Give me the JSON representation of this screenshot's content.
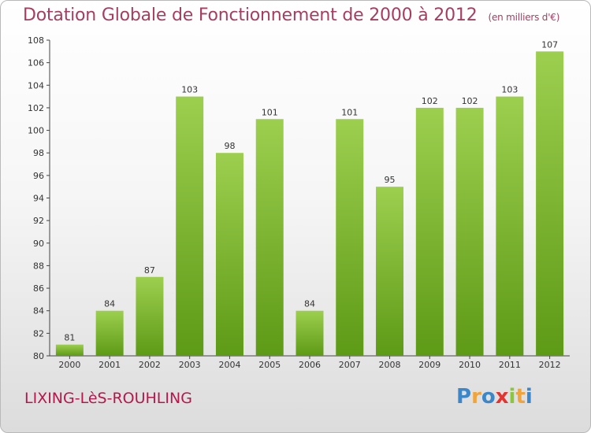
{
  "chart_data": {
    "type": "bar",
    "title": "Dotation Globale de Fonctionnement de 2000 à 2012",
    "subtitle": "(en milliers d'€)",
    "categories": [
      "2000",
      "2001",
      "2002",
      "2003",
      "2004",
      "2005",
      "2006",
      "2007",
      "2008",
      "2009",
      "2010",
      "2011",
      "2012"
    ],
    "values": [
      81,
      84,
      87,
      103,
      98,
      101,
      84,
      101,
      95,
      102,
      102,
      103,
      107
    ],
    "ylim": [
      80,
      108
    ],
    "yticks": [
      80,
      82,
      84,
      86,
      88,
      90,
      92,
      94,
      96,
      98,
      100,
      102,
      104,
      106,
      108
    ],
    "grid": false,
    "legend": "none",
    "bar_color_light": "#9dcf4f",
    "bar_color_dark": "#5d9a16"
  },
  "commune": "LIXING-LèS-ROUHLING",
  "logo": {
    "letters": [
      "P",
      "r",
      "o",
      "x",
      "i",
      "t",
      "i"
    ],
    "colors": [
      "#3c87c9",
      "#f0a43a",
      "#3c87c9",
      "#e3342f",
      "#8cc63f",
      "#f0a43a",
      "#3c87c9"
    ]
  }
}
